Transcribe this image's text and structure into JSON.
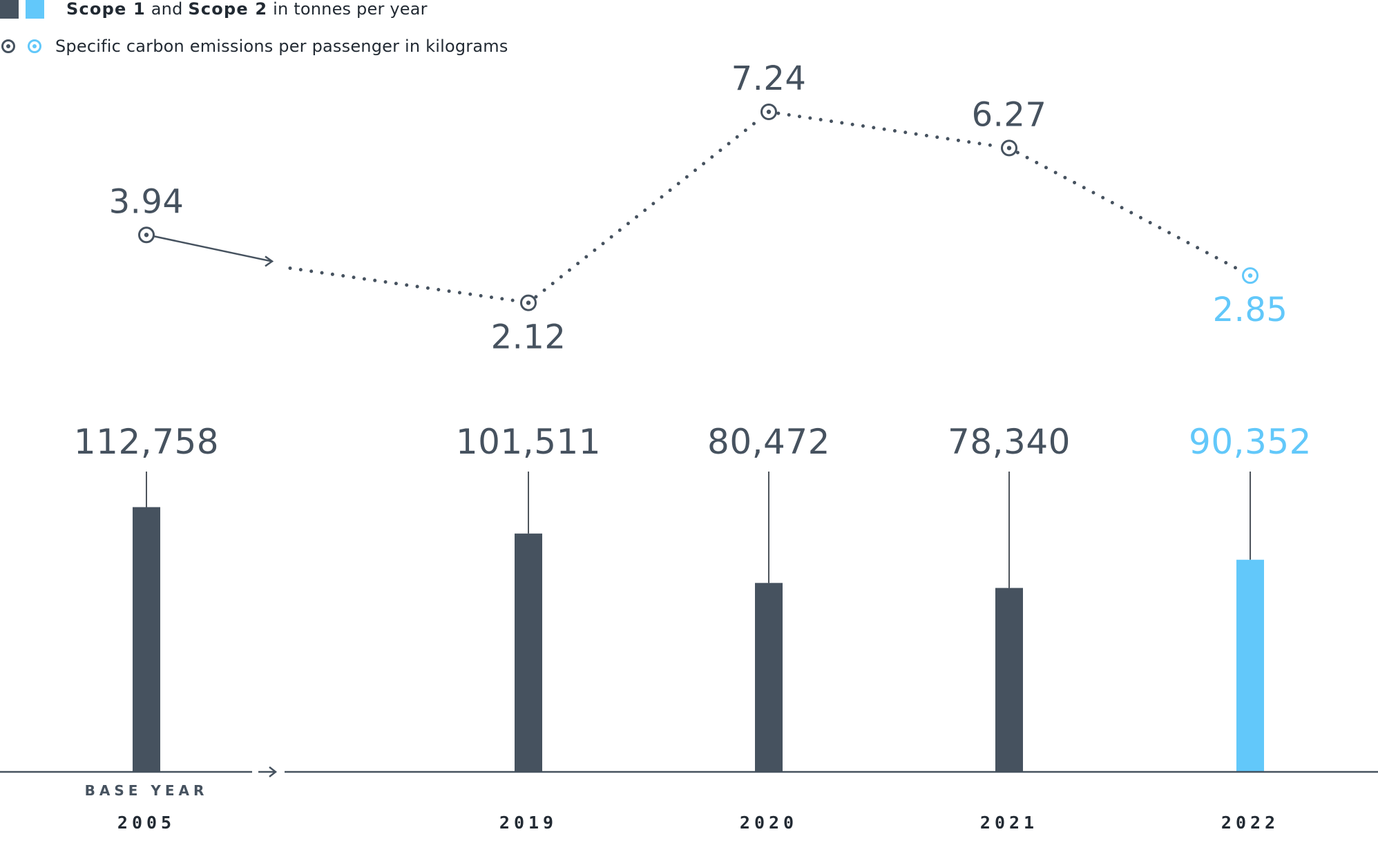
{
  "colors": {
    "past": "#46525f",
    "current": "#62c8fa"
  },
  "legend": {
    "bars_prefix_bold": "Scope 1",
    "bars_and": "and",
    "bars_middle_bold": "Scope 2",
    "bars_suffix": "in tonnes per year",
    "line_label": "Specific carbon emissions per passenger in kilograms"
  },
  "base_year_label": "BASE YEAR",
  "chart_data": {
    "type": "bar",
    "categories": [
      "2005",
      "2019",
      "2020",
      "2021",
      "2022"
    ],
    "series": [
      {
        "name": "Scope 1 and Scope 2 in tonnes per year",
        "type": "bar",
        "values": [
          112758,
          101511,
          80472,
          78340,
          90352
        ],
        "labels": [
          "112,758",
          "101,511",
          "80,472",
          "78,340",
          "90,352"
        ]
      },
      {
        "name": "Specific carbon emissions per passenger in kilograms",
        "type": "line",
        "values": [
          3.94,
          2.12,
          7.24,
          6.27,
          2.85
        ],
        "labels": [
          "3.94",
          "2.12",
          "7.24",
          "6.27",
          "2.85"
        ]
      }
    ],
    "highlight_category": "2022",
    "x_axis_break_after": "2005",
    "legend_position": "top-left"
  }
}
